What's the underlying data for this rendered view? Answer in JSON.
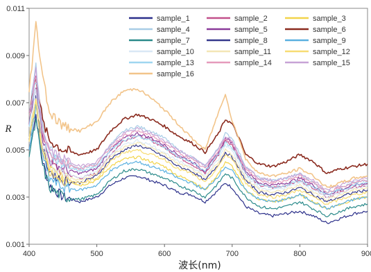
{
  "chart_data": {
    "type": "line",
    "xlabel": "波长(nm)",
    "ylabel": "R",
    "xlim": [
      400,
      900
    ],
    "ylim": [
      0.001,
      0.011
    ],
    "x_ticks": [
      "400",
      "500",
      "600",
      "700",
      "800",
      "900"
    ],
    "y_ticks": [
      "0.001",
      "0.003",
      "0.005",
      "0.007",
      "0.009",
      "0.011"
    ],
    "legend_position": "top-right",
    "x": [
      400,
      410,
      420,
      430,
      450,
      475,
      500,
      520,
      540,
      560,
      580,
      600,
      620,
      640,
      660,
      680,
      690,
      700,
      710,
      720,
      740,
      760,
      780,
      800,
      820,
      840,
      860,
      880,
      900
    ],
    "series": [
      {
        "name": "sample_1",
        "color": "#2b2f8a",
        "values": [
          0.005,
          0.0065,
          0.0045,
          0.0035,
          0.003,
          0.0028,
          0.003,
          0.0035,
          0.0038,
          0.0039,
          0.0037,
          0.0035,
          0.0032,
          0.0031,
          0.0028,
          0.0033,
          0.0036,
          0.0034,
          0.003,
          0.0026,
          0.0023,
          0.0022,
          0.0023,
          0.0024,
          0.0022,
          0.0019,
          0.0021,
          0.0023,
          0.0024
        ]
      },
      {
        "name": "sample_2",
        "color": "#c2508a",
        "values": [
          0.006,
          0.008,
          0.0055,
          0.0045,
          0.004,
          0.0038,
          0.004,
          0.0048,
          0.0054,
          0.0056,
          0.0054,
          0.0051,
          0.0047,
          0.0044,
          0.004,
          0.0048,
          0.0054,
          0.0052,
          0.0046,
          0.004,
          0.0035,
          0.0034,
          0.0035,
          0.0037,
          0.0034,
          0.003,
          0.0032,
          0.0034,
          0.0035
        ]
      },
      {
        "name": "sample_3",
        "color": "#f2d44a",
        "values": [
          0.0055,
          0.007,
          0.005,
          0.0042,
          0.0038,
          0.0035,
          0.0037,
          0.0043,
          0.0046,
          0.0047,
          0.0045,
          0.0043,
          0.0039,
          0.0037,
          0.0033,
          0.004,
          0.0045,
          0.0043,
          0.0038,
          0.0033,
          0.0029,
          0.0028,
          0.0029,
          0.0031,
          0.0028,
          0.0025,
          0.0027,
          0.0029,
          0.003
        ]
      },
      {
        "name": "sample_4",
        "color": "#a8cce6",
        "values": [
          0.0065,
          0.0085,
          0.006,
          0.005,
          0.0045,
          0.0042,
          0.0044,
          0.0052,
          0.0058,
          0.006,
          0.0058,
          0.0055,
          0.005,
          0.0047,
          0.0043,
          0.0051,
          0.0057,
          0.0055,
          0.0049,
          0.0043,
          0.0038,
          0.0037,
          0.0038,
          0.004,
          0.0036,
          0.0032,
          0.0034,
          0.0036,
          0.0037
        ]
      },
      {
        "name": "sample_5",
        "color": "#8a3a9a",
        "values": [
          0.006,
          0.0078,
          0.0055,
          0.0046,
          0.0042,
          0.004,
          0.0042,
          0.005,
          0.0055,
          0.0057,
          0.0055,
          0.0052,
          0.0048,
          0.0045,
          0.0041,
          0.0049,
          0.0055,
          0.0053,
          0.0047,
          0.0041,
          0.0036,
          0.0035,
          0.0036,
          0.0038,
          0.0035,
          0.0031,
          0.0033,
          0.0035,
          0.0036
        ]
      },
      {
        "name": "sample_6",
        "color": "#8a2a1e",
        "values": [
          0.0065,
          0.0082,
          0.0062,
          0.0054,
          0.005,
          0.0048,
          0.005,
          0.0058,
          0.0063,
          0.0065,
          0.0063,
          0.006,
          0.0056,
          0.0053,
          0.0049,
          0.0057,
          0.0063,
          0.0061,
          0.0055,
          0.0048,
          0.0044,
          0.0043,
          0.0045,
          0.0048,
          0.0045,
          0.004,
          0.0042,
          0.0043,
          0.0044
        ]
      },
      {
        "name": "sample_7",
        "color": "#2a8a8a",
        "values": [
          0.0048,
          0.0062,
          0.0043,
          0.0034,
          0.003,
          0.0029,
          0.0031,
          0.0037,
          0.0041,
          0.0042,
          0.004,
          0.0038,
          0.0035,
          0.0033,
          0.003,
          0.0036,
          0.004,
          0.0038,
          0.0034,
          0.003,
          0.0026,
          0.0025,
          0.0026,
          0.0028,
          0.0025,
          0.0022,
          0.0024,
          0.0026,
          0.0027
        ]
      },
      {
        "name": "sample_8",
        "color": "#34388c",
        "values": [
          0.0055,
          0.0072,
          0.005,
          0.0041,
          0.0037,
          0.0036,
          0.0039,
          0.0046,
          0.005,
          0.0052,
          0.005,
          0.0047,
          0.0043,
          0.0041,
          0.0037,
          0.0044,
          0.0049,
          0.0047,
          0.0042,
          0.0037,
          0.0032,
          0.0031,
          0.0032,
          0.0034,
          0.0031,
          0.0028,
          0.003,
          0.0032,
          0.0033
        ]
      },
      {
        "name": "sample_9",
        "color": "#5ab0e0",
        "values": [
          0.005,
          0.0068,
          0.0047,
          0.0038,
          0.0034,
          0.0033,
          0.0035,
          0.0041,
          0.0044,
          0.0045,
          0.0043,
          0.0041,
          0.0038,
          0.0036,
          0.0033,
          0.0039,
          0.0043,
          0.0041,
          0.0037,
          0.0033,
          0.0029,
          0.0028,
          0.0029,
          0.0031,
          0.0028,
          0.0025,
          0.0027,
          0.0029,
          0.003
        ]
      },
      {
        "name": "sample_10",
        "color": "#d9e8f5",
        "values": [
          0.0058,
          0.0075,
          0.0053,
          0.0044,
          0.004,
          0.0038,
          0.0041,
          0.0048,
          0.0052,
          0.0054,
          0.0052,
          0.0049,
          0.0045,
          0.0043,
          0.0039,
          0.0046,
          0.0052,
          0.005,
          0.0044,
          0.0039,
          0.0034,
          0.0033,
          0.0034,
          0.0036,
          0.0033,
          0.003,
          0.0032,
          0.0034,
          0.0035
        ]
      },
      {
        "name": "sample_11",
        "color": "#f3e6b5",
        "values": [
          0.0056,
          0.0073,
          0.0051,
          0.0043,
          0.0039,
          0.0037,
          0.004,
          0.0047,
          0.0051,
          0.0053,
          0.0051,
          0.0048,
          0.0044,
          0.0042,
          0.0038,
          0.0045,
          0.005,
          0.0048,
          0.0043,
          0.0038,
          0.0033,
          0.0032,
          0.0033,
          0.0035,
          0.0032,
          0.0029,
          0.0031,
          0.0033,
          0.0034
        ]
      },
      {
        "name": "sample_12",
        "color": "#f7dc73",
        "values": [
          0.0054,
          0.007,
          0.0049,
          0.0041,
          0.0037,
          0.0036,
          0.0038,
          0.0045,
          0.0049,
          0.005,
          0.0048,
          0.0046,
          0.0042,
          0.004,
          0.0036,
          0.0043,
          0.0048,
          0.0046,
          0.0041,
          0.0036,
          0.0031,
          0.003,
          0.0031,
          0.0033,
          0.003,
          0.0027,
          0.0029,
          0.0031,
          0.0032
        ]
      },
      {
        "name": "sample_13",
        "color": "#9fd6f0",
        "values": [
          0.0062,
          0.008,
          0.0057,
          0.0048,
          0.0044,
          0.0041,
          0.0043,
          0.005,
          0.0054,
          0.0056,
          0.0054,
          0.0051,
          0.0047,
          0.0045,
          0.0041,
          0.0048,
          0.0053,
          0.0051,
          0.0046,
          0.004,
          0.0035,
          0.0034,
          0.0035,
          0.0037,
          0.0034,
          0.0031,
          0.0033,
          0.0035,
          0.0036
        ]
      },
      {
        "name": "sample_14",
        "color": "#e59abc",
        "values": [
          0.0063,
          0.0082,
          0.0058,
          0.0049,
          0.0045,
          0.0042,
          0.0044,
          0.0051,
          0.0056,
          0.0058,
          0.0056,
          0.0053,
          0.0049,
          0.0046,
          0.0042,
          0.005,
          0.0055,
          0.0053,
          0.0047,
          0.0042,
          0.0037,
          0.0036,
          0.0037,
          0.0039,
          0.0036,
          0.0032,
          0.0034,
          0.0036,
          0.0037
        ]
      },
      {
        "name": "sample_15",
        "color": "#c7a3d6",
        "values": [
          0.0064,
          0.0083,
          0.0059,
          0.005,
          0.0046,
          0.0043,
          0.0045,
          0.0052,
          0.0057,
          0.0059,
          0.0057,
          0.0054,
          0.005,
          0.0047,
          0.0043,
          0.0051,
          0.0056,
          0.0054,
          0.0048,
          0.0043,
          0.0038,
          0.0037,
          0.0038,
          0.004,
          0.0037,
          0.0033,
          0.0035,
          0.0037,
          0.0038
        ]
      },
      {
        "name": "sample_16",
        "color": "#f2c48a",
        "values": [
          0.0075,
          0.0103,
          0.0082,
          0.0066,
          0.006,
          0.0058,
          0.0062,
          0.007,
          0.0075,
          0.0076,
          0.0072,
          0.0067,
          0.0061,
          0.0055,
          0.005,
          0.0066,
          0.0074,
          0.0062,
          0.0055,
          0.0046,
          0.004,
          0.0039,
          0.004,
          0.0042,
          0.0039,
          0.0034,
          0.0036,
          0.0038,
          0.0039
        ]
      }
    ]
  }
}
